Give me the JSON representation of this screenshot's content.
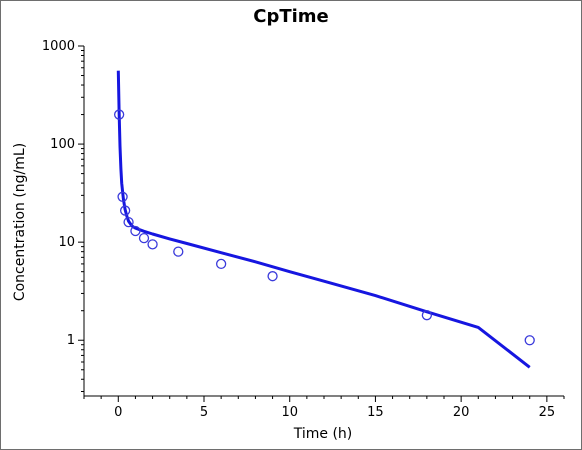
{
  "chart_data": {
    "type": "scatter",
    "title": "CpTime",
    "xlabel": "Time (h)",
    "ylabel": "Concentration (ng/mL)",
    "xlim": [
      -2,
      26
    ],
    "ylim": [
      0.27,
      1000
    ],
    "y_scale": "log",
    "grid": false,
    "legend": "none",
    "x_ticks": [
      0,
      5,
      10,
      15,
      20,
      25
    ],
    "x_tick_labels": [
      "0",
      "5",
      "10",
      "15",
      "20",
      "25"
    ],
    "y_ticks": [
      1,
      10,
      100,
      1000
    ],
    "y_tick_labels": [
      "1",
      "10",
      "100",
      "1000"
    ],
    "series": [
      {
        "kind": "points",
        "color": "#3a3adb",
        "x": [
          0.05,
          0.25,
          0.4,
          0.6,
          1.0,
          1.5,
          2.0,
          3.5,
          6.0,
          9.0,
          18.0,
          24.0
        ],
        "y": [
          200,
          29,
          21,
          16,
          13,
          11,
          9.5,
          8,
          6,
          4.5,
          1.8,
          1.0
        ]
      },
      {
        "kind": "line",
        "color": "#1616e0",
        "x": [
          0,
          0.05,
          0.1,
          0.15,
          0.2,
          0.3,
          0.4,
          0.5,
          0.6,
          0.8,
          1.0,
          1.5,
          2.0,
          3.0,
          4.0,
          6.0,
          8.0,
          10.0,
          12.0,
          15.0,
          18.0,
          21.0,
          24.0
        ],
        "y": [
          560,
          215,
          95,
          56,
          40,
          27.5,
          21.5,
          18.3,
          16.3,
          14.6,
          13.9,
          12.9,
          12.1,
          10.8,
          9.7,
          7.8,
          6.3,
          5.0,
          4.0,
          2.85,
          1.95,
          1.35,
          0.53
        ]
      }
    ]
  }
}
